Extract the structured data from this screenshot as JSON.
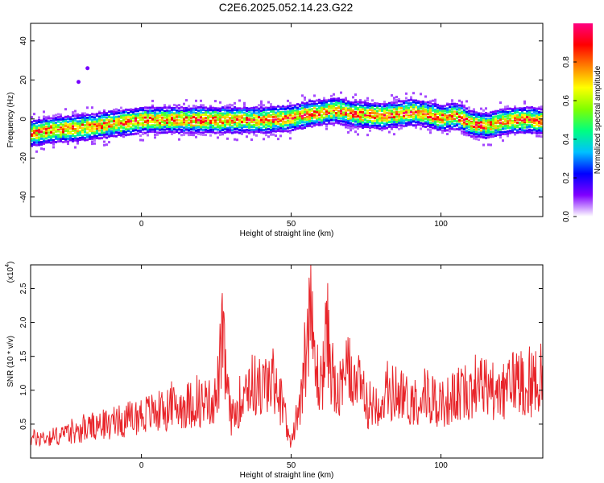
{
  "title": "C2E6.2025.052.14.23.G22",
  "chart_data": [
    {
      "type": "heatmap",
      "xlabel": "Height of straight line (km)",
      "ylabel": "Frequency (Hz)",
      "xlim": [
        -37,
        134
      ],
      "ylim": [
        -50,
        49
      ],
      "xticks": [
        0,
        50,
        100
      ],
      "yticks": [
        -40,
        -20,
        0,
        20,
        40
      ],
      "colorbar": {
        "label": "Normalized spectral amplitude",
        "range": [
          0,
          1
        ],
        "ticks": [
          "0.0",
          "0.2",
          "0.4",
          "0.6",
          "0.8"
        ],
        "colors": [
          "#ffffff",
          "#8000ff",
          "#0000ff",
          "#00c0ff",
          "#00ff80",
          "#80ff00",
          "#ffff00",
          "#ff8000",
          "#ff0000",
          "#ff0080"
        ]
      },
      "ridge": {
        "x": [
          -37,
          -30,
          -20,
          -10,
          0,
          10,
          20,
          30,
          40,
          50,
          55,
          60,
          65,
          70,
          80,
          90,
          95,
          100,
          105,
          110,
          115,
          120,
          125,
          130,
          134
        ],
        "frequency": [
          -7,
          -5,
          -4,
          -2,
          0,
          0,
          0,
          0,
          0,
          1,
          3,
          4,
          5,
          3,
          2,
          4,
          3,
          1,
          2,
          -2,
          -3,
          -1,
          0,
          0,
          -1
        ]
      },
      "outliers": [
        {
          "x": -21,
          "frequency": 19
        },
        {
          "x": -18,
          "frequency": 26
        }
      ]
    },
    {
      "type": "line",
      "xlabel": "Height of straight line (km)",
      "ylabel": "SNR (10 * v/v)",
      "multiplier_label": "(x10",
      "multiplier_exp": "4",
      "xlim": [
        -37,
        134
      ],
      "ylim": [
        0,
        2.85
      ],
      "xticks": [
        0,
        50,
        100
      ],
      "yticks": [
        "0.5",
        "1.0",
        "1.5",
        "2.0",
        "2.5"
      ],
      "color": "#e8252a",
      "series": [
        {
          "x": [
            -37,
            -30,
            -25,
            -20,
            -15,
            -10,
            -5,
            0,
            5,
            10,
            15,
            20,
            25,
            27,
            30,
            35,
            40,
            45,
            50,
            53,
            55,
            56,
            58,
            60,
            62,
            65,
            70,
            75,
            80,
            85,
            90,
            95,
            100,
            105,
            110,
            115,
            120,
            125,
            130,
            134
          ],
          "values": [
            0.35,
            0.38,
            0.42,
            0.5,
            0.58,
            0.62,
            0.68,
            0.78,
            0.82,
            0.9,
            0.95,
            1.0,
            1.05,
            2.08,
            0.6,
            1.35,
            1.25,
            1.4,
            0.2,
            1.1,
            2.0,
            2.82,
            1.6,
            1.3,
            2.25,
            1.05,
            1.6,
            0.95,
            1.05,
            1.2,
            1.0,
            1.15,
            0.95,
            1.1,
            1.25,
            1.3,
            1.1,
            1.45,
            1.3,
            1.55
          ]
        }
      ]
    }
  ]
}
